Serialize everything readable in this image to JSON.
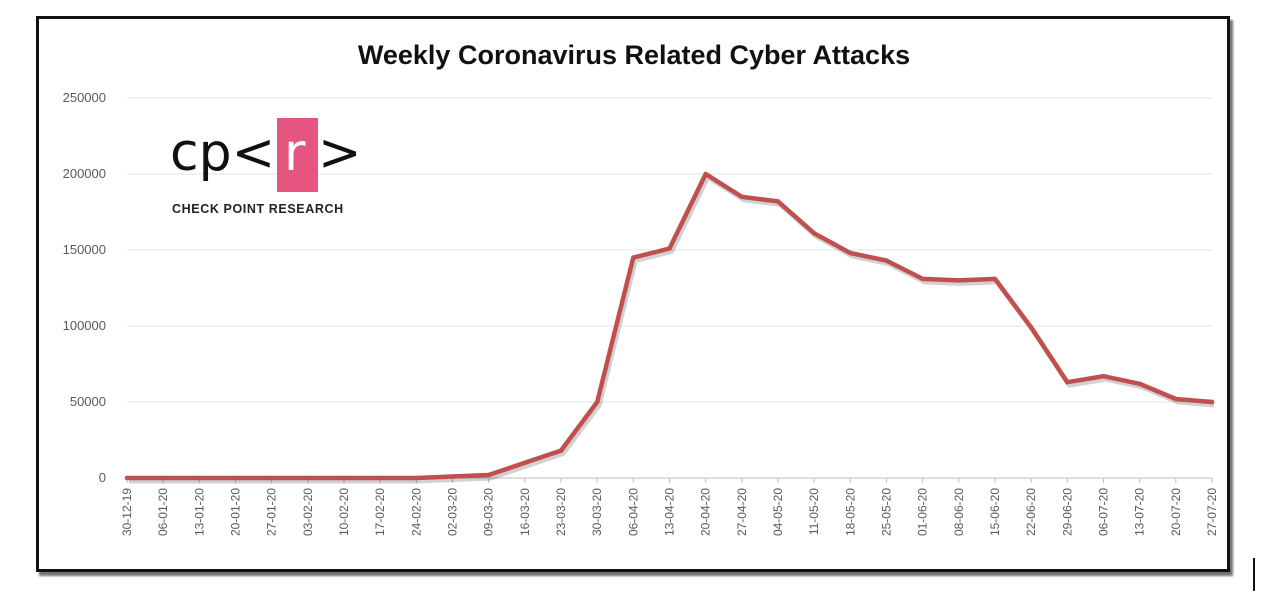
{
  "chart_data": {
    "type": "line",
    "title": "Weekly Coronavirus Related Cyber Attacks",
    "xlabel": "",
    "ylabel": "",
    "ylim": [
      0,
      250000
    ],
    "yticks": [
      "0",
      "50000",
      "100000",
      "150000",
      "200000",
      "250000"
    ],
    "grid": true,
    "line_color": "#c0504d",
    "categories": [
      "30-12-19",
      "06-01-20",
      "13-01-20",
      "20-01-20",
      "27-01-20",
      "03-02-20",
      "10-02-20",
      "17-02-20",
      "24-02-20",
      "02-03-20",
      "09-03-20",
      "16-03-20",
      "23-03-20",
      "30-03-20",
      "06-04-20",
      "13-04-20",
      "20-04-20",
      "27-04-20",
      "04-05-20",
      "11-05-20",
      "18-05-20",
      "25-05-20",
      "01-06-20",
      "08-06-20",
      "15-06-20",
      "22-06-20",
      "29-06-20",
      "06-07-20",
      "13-07-20",
      "20-07-20",
      "27-07-20"
    ],
    "series": [
      {
        "values": [
          0,
          0,
          0,
          0,
          0,
          0,
          0,
          0,
          0,
          1000,
          2000,
          10000,
          18000,
          50000,
          145000,
          151000,
          200000,
          185000,
          182000,
          161000,
          148000,
          143000,
          131000,
          130000,
          131000,
          99000,
          63000,
          67000,
          62000,
          52000,
          50000
        ]
      }
    ]
  },
  "logo": {
    "text": "cp<r>",
    "prefix": "cp<",
    "highlight": "r",
    "suffix": ">",
    "tagline": "CHECK POINT RESEARCH",
    "highlight_color": "#e6557f"
  }
}
